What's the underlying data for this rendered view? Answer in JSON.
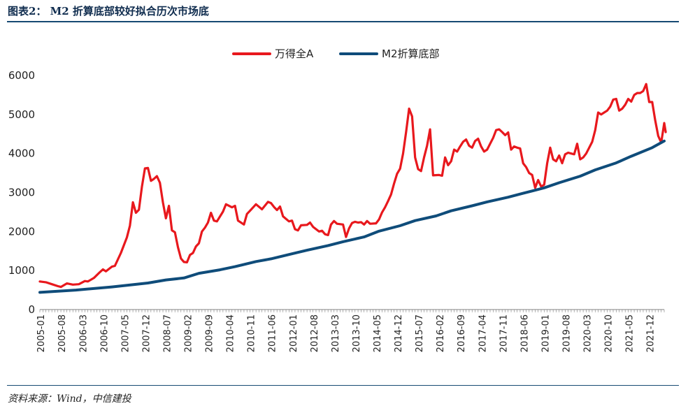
{
  "header": {
    "title": "图表2： M2 折算底部较好拟合历次市场底"
  },
  "footer": {
    "source": "资料来源：Wind，中信建投"
  },
  "colors": {
    "wind_all_a": "#e8181d",
    "m2_floor": "#0f4c7a",
    "rule": "#164a73"
  },
  "chart_data": {
    "type": "line",
    "title": "图表2： M2 折算底部较好拟合历次市场底",
    "xlabel": "",
    "ylabel": "",
    "ylim": [
      0,
      6000
    ],
    "yticks": [
      0,
      1000,
      2000,
      3000,
      4000,
      5000,
      6000
    ],
    "xticks": [
      "2005-01",
      "2005-08",
      "2006-03",
      "2006-10",
      "2007-05",
      "2007-12",
      "2008-07",
      "2009-02",
      "2009-09",
      "2010-04",
      "2010-11",
      "2011-06",
      "2012-01",
      "2012-08",
      "2013-03",
      "2013-10",
      "2014-05",
      "2014-12",
      "2015-07",
      "2016-02",
      "2016-09",
      "2017-04",
      "2017-11",
      "2018-06",
      "2019-01",
      "2019-08",
      "2020-03",
      "2020-10",
      "2021-05",
      "2021-12"
    ],
    "x_start": "2005-01",
    "x_end": "2022-04",
    "legend": [
      "万得全A",
      "M2折算底部"
    ],
    "legend_position": "top-center",
    "series": [
      {
        "name": "万得全A",
        "color": "#e8181d",
        "points": [
          [
            "2005-01",
            720
          ],
          [
            "2005-03",
            700
          ],
          [
            "2005-05",
            650
          ],
          [
            "2005-07",
            600
          ],
          [
            "2005-08",
            580
          ],
          [
            "2005-10",
            670
          ],
          [
            "2005-12",
            640
          ],
          [
            "2006-02",
            650
          ],
          [
            "2006-04",
            730
          ],
          [
            "2006-05",
            720
          ],
          [
            "2006-07",
            810
          ],
          [
            "2006-09",
            960
          ],
          [
            "2006-10",
            1030
          ],
          [
            "2006-11",
            980
          ],
          [
            "2007-01",
            1100
          ],
          [
            "2007-02",
            1120
          ],
          [
            "2007-04",
            1450
          ],
          [
            "2007-06",
            1850
          ],
          [
            "2007-07",
            2150
          ],
          [
            "2007-08",
            2750
          ],
          [
            "2007-09",
            2480
          ],
          [
            "2007-10",
            2560
          ],
          [
            "2007-11",
            3150
          ],
          [
            "2007-12",
            3620
          ],
          [
            "2008-01",
            3630
          ],
          [
            "2008-02",
            3300
          ],
          [
            "2008-03",
            3350
          ],
          [
            "2008-04",
            3420
          ],
          [
            "2008-05",
            3250
          ],
          [
            "2008-06",
            2750
          ],
          [
            "2008-07",
            2340
          ],
          [
            "2008-08",
            2660
          ],
          [
            "2008-09",
            2030
          ],
          [
            "2008-10",
            1980
          ],
          [
            "2008-11",
            1600
          ],
          [
            "2008-12",
            1310
          ],
          [
            "2009-01",
            1220
          ],
          [
            "2009-02",
            1210
          ],
          [
            "2009-03",
            1400
          ],
          [
            "2009-04",
            1450
          ],
          [
            "2009-05",
            1620
          ],
          [
            "2009-06",
            1700
          ],
          [
            "2009-07",
            2000
          ],
          [
            "2009-08",
            2100
          ],
          [
            "2009-09",
            2230
          ],
          [
            "2009-10",
            2480
          ],
          [
            "2009-11",
            2280
          ],
          [
            "2009-12",
            2260
          ],
          [
            "2010-02",
            2510
          ],
          [
            "2010-03",
            2700
          ],
          [
            "2010-05",
            2620
          ],
          [
            "2010-06",
            2660
          ],
          [
            "2010-07",
            2280
          ],
          [
            "2010-09",
            2180
          ],
          [
            "2010-10",
            2450
          ],
          [
            "2010-11",
            2530
          ],
          [
            "2011-01",
            2700
          ],
          [
            "2011-03",
            2570
          ],
          [
            "2011-05",
            2760
          ],
          [
            "2011-06",
            2730
          ],
          [
            "2011-07",
            2630
          ],
          [
            "2011-08",
            2550
          ],
          [
            "2011-09",
            2640
          ],
          [
            "2011-10",
            2390
          ],
          [
            "2011-12",
            2260
          ],
          [
            "2012-01",
            2280
          ],
          [
            "2012-02",
            2060
          ],
          [
            "2012-03",
            2030
          ],
          [
            "2012-04",
            2160
          ],
          [
            "2012-06",
            2170
          ],
          [
            "2012-07",
            2230
          ],
          [
            "2012-08",
            2120
          ],
          [
            "2012-10",
            2000
          ],
          [
            "2012-11",
            2020
          ],
          [
            "2012-12",
            1930
          ],
          [
            "2013-01",
            1910
          ],
          [
            "2013-02",
            2180
          ],
          [
            "2013-03",
            2270
          ],
          [
            "2013-04",
            2200
          ],
          [
            "2013-06",
            2180
          ],
          [
            "2013-07",
            1860
          ],
          [
            "2013-08",
            2080
          ],
          [
            "2013-09",
            2220
          ],
          [
            "2013-10",
            2250
          ],
          [
            "2013-11",
            2230
          ],
          [
            "2013-12",
            2240
          ],
          [
            "2014-01",
            2180
          ],
          [
            "2014-02",
            2270
          ],
          [
            "2014-03",
            2200
          ],
          [
            "2014-05",
            2210
          ],
          [
            "2014-06",
            2310
          ],
          [
            "2014-07",
            2490
          ],
          [
            "2014-08",
            2620
          ],
          [
            "2014-09",
            2780
          ],
          [
            "2014-10",
            2950
          ],
          [
            "2014-11",
            3230
          ],
          [
            "2014-12",
            3480
          ],
          [
            "2015-01",
            3610
          ],
          [
            "2015-02",
            4000
          ],
          [
            "2015-03",
            4550
          ],
          [
            "2015-04",
            5150
          ],
          [
            "2015-05",
            4950
          ],
          [
            "2015-06",
            3900
          ],
          [
            "2015-07",
            3600
          ],
          [
            "2015-08",
            3550
          ],
          [
            "2015-09",
            3900
          ],
          [
            "2015-10",
            4200
          ],
          [
            "2015-11",
            4620
          ],
          [
            "2015-12",
            3440
          ],
          [
            "2016-02",
            3450
          ],
          [
            "2016-03",
            3430
          ],
          [
            "2016-04",
            3900
          ],
          [
            "2016-05",
            3700
          ],
          [
            "2016-06",
            3800
          ],
          [
            "2016-07",
            4100
          ],
          [
            "2016-08",
            4050
          ],
          [
            "2016-09",
            4180
          ],
          [
            "2016-10",
            4300
          ],
          [
            "2016-11",
            4360
          ],
          [
            "2016-12",
            4200
          ],
          [
            "2017-01",
            4150
          ],
          [
            "2017-02",
            4320
          ],
          [
            "2017-03",
            4380
          ],
          [
            "2017-04",
            4180
          ],
          [
            "2017-05",
            4050
          ],
          [
            "2017-06",
            4100
          ],
          [
            "2017-07",
            4250
          ],
          [
            "2017-08",
            4400
          ],
          [
            "2017-09",
            4600
          ],
          [
            "2017-10",
            4620
          ],
          [
            "2017-11",
            4550
          ],
          [
            "2017-12",
            4470
          ],
          [
            "2018-01",
            4540
          ],
          [
            "2018-02",
            4100
          ],
          [
            "2018-03",
            4180
          ],
          [
            "2018-04",
            4150
          ],
          [
            "2018-05",
            4130
          ],
          [
            "2018-06",
            3750
          ],
          [
            "2018-07",
            3650
          ],
          [
            "2018-08",
            3500
          ],
          [
            "2018-09",
            3450
          ],
          [
            "2018-10",
            3120
          ],
          [
            "2018-11",
            3320
          ],
          [
            "2018-12",
            3150
          ],
          [
            "2019-01",
            3200
          ],
          [
            "2019-02",
            3750
          ],
          [
            "2019-03",
            4150
          ],
          [
            "2019-04",
            3850
          ],
          [
            "2019-05",
            3800
          ],
          [
            "2019-06",
            3950
          ],
          [
            "2019-07",
            3750
          ],
          [
            "2019-08",
            3980
          ],
          [
            "2019-09",
            4020
          ],
          [
            "2019-10",
            4000
          ],
          [
            "2019-11",
            3980
          ],
          [
            "2019-12",
            4250
          ],
          [
            "2020-01",
            3850
          ],
          [
            "2020-02",
            3900
          ],
          [
            "2020-03",
            4000
          ],
          [
            "2020-04",
            4150
          ],
          [
            "2020-05",
            4300
          ],
          [
            "2020-06",
            4600
          ],
          [
            "2020-07",
            5050
          ],
          [
            "2020-08",
            5000
          ],
          [
            "2020-09",
            5050
          ],
          [
            "2020-10",
            5100
          ],
          [
            "2020-11",
            5200
          ],
          [
            "2020-12",
            5380
          ],
          [
            "2021-01",
            5400
          ],
          [
            "2021-02",
            5100
          ],
          [
            "2021-03",
            5150
          ],
          [
            "2021-04",
            5250
          ],
          [
            "2021-05",
            5400
          ],
          [
            "2021-06",
            5330
          ],
          [
            "2021-07",
            5500
          ],
          [
            "2021-08",
            5550
          ],
          [
            "2021-09",
            5550
          ],
          [
            "2021-10",
            5600
          ],
          [
            "2021-11",
            5780
          ],
          [
            "2021-12",
            5320
          ],
          [
            "2022-01",
            5320
          ],
          [
            "2022-02",
            4850
          ],
          [
            "2022-03",
            4450
          ],
          [
            "2022-04",
            4280
          ],
          [
            "2022-05",
            4780
          ],
          [
            "2022-05b",
            4550
          ]
        ]
      },
      {
        "name": "M2折算底部",
        "color": "#0f4c7a",
        "points": [
          [
            "2005-01",
            440
          ],
          [
            "2006-01",
            500
          ],
          [
            "2007-01",
            580
          ],
          [
            "2008-01",
            680
          ],
          [
            "2008-07",
            760
          ],
          [
            "2009-01",
            810
          ],
          [
            "2009-06",
            930
          ],
          [
            "2010-01",
            1020
          ],
          [
            "2010-06",
            1100
          ],
          [
            "2011-01",
            1230
          ],
          [
            "2011-06",
            1300
          ],
          [
            "2012-01",
            1430
          ],
          [
            "2012-06",
            1520
          ],
          [
            "2013-01",
            1640
          ],
          [
            "2013-06",
            1740
          ],
          [
            "2014-01",
            1860
          ],
          [
            "2014-06",
            2010
          ],
          [
            "2015-01",
            2150
          ],
          [
            "2015-06",
            2280
          ],
          [
            "2016-01",
            2400
          ],
          [
            "2016-06",
            2530
          ],
          [
            "2017-01",
            2660
          ],
          [
            "2017-06",
            2760
          ],
          [
            "2018-01",
            2880
          ],
          [
            "2018-06",
            2980
          ],
          [
            "2019-01",
            3120
          ],
          [
            "2019-06",
            3250
          ],
          [
            "2020-01",
            3420
          ],
          [
            "2020-06",
            3580
          ],
          [
            "2021-01",
            3760
          ],
          [
            "2021-06",
            3930
          ],
          [
            "2022-01",
            4150
          ],
          [
            "2022-05",
            4320
          ]
        ]
      }
    ]
  }
}
